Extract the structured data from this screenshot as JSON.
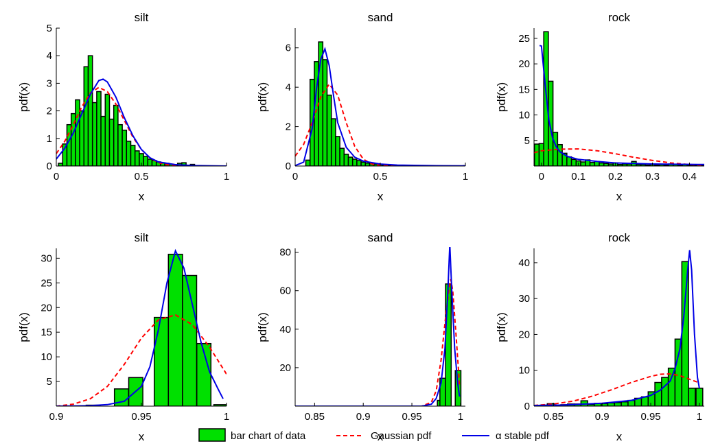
{
  "legend": {
    "items": [
      {
        "key": "bars",
        "label": "bar chart of data",
        "color": "#00e000"
      },
      {
        "key": "gauss",
        "label": "Gaussian pdf",
        "color": "#ff0000"
      },
      {
        "key": "stable",
        "label": "α stable pdf",
        "color": "#0000e6"
      }
    ]
  },
  "chart_data": [
    {
      "type": "bar",
      "title": "silt",
      "xlabel": "x",
      "ylabel": "pdf(x)",
      "xlim": [
        0,
        1
      ],
      "ylim": [
        0,
        5
      ],
      "xticks": [
        0,
        0.5,
        1
      ],
      "xtick_labels": [
        "0",
        "0.5",
        "1"
      ],
      "yticks": [
        0,
        1,
        2,
        3,
        4,
        5
      ],
      "ytick_labels": [
        "0",
        "1",
        "2",
        "3",
        "4",
        "5"
      ],
      "bin_width": 0.025,
      "bars": [
        [
          0.025,
          0.1
        ],
        [
          0.05,
          0.8
        ],
        [
          0.075,
          1.5
        ],
        [
          0.1,
          1.9
        ],
        [
          0.125,
          2.4
        ],
        [
          0.15,
          2.0
        ],
        [
          0.175,
          3.6
        ],
        [
          0.2,
          4.0
        ],
        [
          0.225,
          2.3
        ],
        [
          0.25,
          2.7
        ],
        [
          0.275,
          1.8
        ],
        [
          0.3,
          2.6
        ],
        [
          0.325,
          1.7
        ],
        [
          0.35,
          2.2
        ],
        [
          0.375,
          1.5
        ],
        [
          0.4,
          1.3
        ],
        [
          0.425,
          0.9
        ],
        [
          0.45,
          0.75
        ],
        [
          0.475,
          0.55
        ],
        [
          0.5,
          0.45
        ],
        [
          0.525,
          0.35
        ],
        [
          0.55,
          0.25
        ],
        [
          0.575,
          0.2
        ],
        [
          0.6,
          0.15
        ],
        [
          0.625,
          0.12
        ],
        [
          0.65,
          0.1
        ],
        [
          0.675,
          0.07
        ],
        [
          0.7,
          0.05
        ],
        [
          0.725,
          0.1
        ],
        [
          0.75,
          0.12
        ],
        [
          0.8,
          0.06
        ]
      ],
      "gaussian": [
        [
          0,
          0.45
        ],
        [
          0.05,
          0.9
        ],
        [
          0.1,
          1.5
        ],
        [
          0.15,
          2.15
        ],
        [
          0.2,
          2.65
        ],
        [
          0.25,
          2.85
        ],
        [
          0.3,
          2.7
        ],
        [
          0.35,
          2.25
        ],
        [
          0.4,
          1.65
        ],
        [
          0.45,
          1.05
        ],
        [
          0.5,
          0.6
        ],
        [
          0.55,
          0.3
        ],
        [
          0.6,
          0.12
        ],
        [
          0.65,
          0.05
        ],
        [
          0.7,
          0.02
        ],
        [
          0.8,
          0.0
        ],
        [
          1,
          0.0
        ]
      ],
      "stable": [
        [
          0,
          0.25
        ],
        [
          0.05,
          0.65
        ],
        [
          0.1,
          1.2
        ],
        [
          0.15,
          1.9
        ],
        [
          0.2,
          2.6
        ],
        [
          0.25,
          3.1
        ],
        [
          0.275,
          3.15
        ],
        [
          0.3,
          3.05
        ],
        [
          0.35,
          2.5
        ],
        [
          0.4,
          1.75
        ],
        [
          0.45,
          1.1
        ],
        [
          0.5,
          0.6
        ],
        [
          0.55,
          0.3
        ],
        [
          0.6,
          0.15
        ],
        [
          0.7,
          0.05
        ],
        [
          0.8,
          0.02
        ],
        [
          1,
          0.0
        ]
      ]
    },
    {
      "type": "bar",
      "title": "sand",
      "xlabel": "x",
      "ylabel": "pdf(x)",
      "xlim": [
        0,
        1
      ],
      "ylim": [
        0,
        7
      ],
      "xticks": [
        0,
        0.5,
        1
      ],
      "xtick_labels": [
        "0",
        "0.5",
        "1"
      ],
      "yticks": [
        0,
        2,
        4,
        6
      ],
      "ytick_labels": [
        "0",
        "2",
        "4",
        "6"
      ],
      "bin_width": 0.025,
      "bars": [
        [
          0.075,
          0.3
        ],
        [
          0.1,
          4.4
        ],
        [
          0.125,
          5.3
        ],
        [
          0.15,
          6.3
        ],
        [
          0.175,
          5.4
        ],
        [
          0.2,
          3.6
        ],
        [
          0.225,
          2.4
        ],
        [
          0.25,
          1.5
        ],
        [
          0.275,
          0.9
        ],
        [
          0.3,
          0.6
        ],
        [
          0.325,
          0.45
        ],
        [
          0.35,
          0.35
        ],
        [
          0.375,
          0.28
        ],
        [
          0.4,
          0.2
        ],
        [
          0.425,
          0.15
        ],
        [
          0.45,
          0.12
        ],
        [
          0.475,
          0.1
        ],
        [
          0.5,
          0.07
        ],
        [
          0.525,
          0.06
        ],
        [
          0.55,
          0.05
        ],
        [
          0.6,
          0.04
        ],
        [
          0.65,
          0.03
        ],
        [
          0.7,
          0.02
        ],
        [
          0.75,
          0.02
        ],
        [
          0.8,
          0.02
        ],
        [
          0.85,
          0.01
        ],
        [
          0.9,
          0.01
        ],
        [
          0.95,
          0.01
        ],
        [
          1.0,
          0.02
        ]
      ],
      "gaussian": [
        [
          0,
          0.5
        ],
        [
          0.05,
          1.1
        ],
        [
          0.1,
          2.2
        ],
        [
          0.15,
          3.5
        ],
        [
          0.2,
          4.15
        ],
        [
          0.25,
          3.6
        ],
        [
          0.3,
          2.2
        ],
        [
          0.35,
          1.0
        ],
        [
          0.4,
          0.35
        ],
        [
          0.45,
          0.1
        ],
        [
          0.5,
          0.03
        ],
        [
          0.6,
          0.0
        ],
        [
          1,
          0.0
        ]
      ],
      "stable": [
        [
          0,
          0.02
        ],
        [
          0.05,
          0.2
        ],
        [
          0.1,
          1.9
        ],
        [
          0.125,
          3.9
        ],
        [
          0.15,
          5.4
        ],
        [
          0.175,
          5.95
        ],
        [
          0.2,
          5.1
        ],
        [
          0.225,
          3.6
        ],
        [
          0.25,
          2.2
        ],
        [
          0.3,
          0.95
        ],
        [
          0.35,
          0.45
        ],
        [
          0.4,
          0.25
        ],
        [
          0.5,
          0.1
        ],
        [
          0.6,
          0.05
        ],
        [
          0.8,
          0.02
        ],
        [
          1,
          0.01
        ]
      ]
    },
    {
      "type": "bar",
      "title": "rock",
      "xlabel": "x",
      "ylabel": "pdf(x)",
      "xlim": [
        -0.02,
        0.44
      ],
      "ylim": [
        0,
        27
      ],
      "xticks": [
        0,
        0.1,
        0.2,
        0.3,
        0.4
      ],
      "xtick_labels": [
        "0",
        "0.1",
        "0.2",
        "0.3",
        "0.4"
      ],
      "yticks": [
        5,
        10,
        15,
        20,
        25
      ],
      "ytick_labels": [
        "5",
        "10",
        "15",
        "20",
        "25"
      ],
      "bin_width": 0.0125,
      "bars": [
        [
          -0.0125,
          4.3
        ],
        [
          0.0,
          4.4
        ],
        [
          0.0125,
          26.3
        ],
        [
          0.025,
          16.6
        ],
        [
          0.0375,
          6.6
        ],
        [
          0.05,
          4.2
        ],
        [
          0.0625,
          2.5
        ],
        [
          0.075,
          1.8
        ],
        [
          0.0875,
          1.3
        ],
        [
          0.1,
          1.0
        ],
        [
          0.1125,
          0.8
        ],
        [
          0.125,
          1.2
        ],
        [
          0.1375,
          0.7
        ],
        [
          0.15,
          0.9
        ],
        [
          0.1625,
          0.6
        ],
        [
          0.175,
          0.5
        ],
        [
          0.1875,
          0.4
        ],
        [
          0.2,
          0.6
        ],
        [
          0.2125,
          0.3
        ],
        [
          0.225,
          0.4
        ],
        [
          0.2375,
          0.4
        ],
        [
          0.25,
          0.9
        ],
        [
          0.2625,
          0.3
        ],
        [
          0.275,
          0.3
        ],
        [
          0.2875,
          0.2
        ],
        [
          0.3,
          0.3
        ],
        [
          0.3125,
          0.2
        ],
        [
          0.325,
          0.3
        ],
        [
          0.3375,
          0.2
        ],
        [
          0.35,
          0.4
        ],
        [
          0.3625,
          0.3
        ],
        [
          0.375,
          0.2
        ],
        [
          0.3875,
          0.3
        ],
        [
          0.4,
          0.2
        ],
        [
          0.4125,
          0.2
        ],
        [
          0.425,
          0.3
        ],
        [
          0.4375,
          0.2
        ]
      ],
      "gaussian": [
        [
          -0.02,
          2.6
        ],
        [
          0.0,
          3.0
        ],
        [
          0.05,
          3.3
        ],
        [
          0.1,
          3.35
        ],
        [
          0.15,
          3.0
        ],
        [
          0.2,
          2.4
        ],
        [
          0.25,
          1.7
        ],
        [
          0.3,
          1.1
        ],
        [
          0.35,
          0.6
        ],
        [
          0.4,
          0.3
        ],
        [
          0.44,
          0.15
        ]
      ],
      "stable": [
        [
          -0.005,
          23.6
        ],
        [
          0.0,
          23.5
        ],
        [
          0.01,
          16.0
        ],
        [
          0.02,
          9.0
        ],
        [
          0.03,
          5.5
        ],
        [
          0.04,
          3.8
        ],
        [
          0.05,
          2.8
        ],
        [
          0.07,
          1.9
        ],
        [
          0.1,
          1.3
        ],
        [
          0.15,
          0.9
        ],
        [
          0.2,
          0.6
        ],
        [
          0.3,
          0.4
        ],
        [
          0.44,
          0.3
        ]
      ]
    },
    {
      "type": "bar",
      "title": "silt",
      "xlabel": "x",
      "ylabel": "pdf(x)",
      "xlim": [
        0.9,
        1.0
      ],
      "ylim": [
        0,
        32
      ],
      "xticks": [
        0.9,
        0.95,
        1
      ],
      "xtick_labels": [
        "0.9",
        "0.95",
        "1"
      ],
      "yticks": [
        5,
        10,
        15,
        20,
        25,
        30
      ],
      "ytick_labels": [
        "5",
        "10",
        "15",
        "20",
        "25",
        "30"
      ],
      "bin_width": 0.0083,
      "bars": [
        [
          0.9217,
          0.2
        ],
        [
          0.9383,
          3.5
        ],
        [
          0.9467,
          5.8
        ],
        [
          0.9617,
          18.0
        ],
        [
          0.97,
          30.8
        ],
        [
          0.9783,
          26.5
        ],
        [
          0.9867,
          12.7
        ],
        [
          0.9967,
          0.3
        ]
      ],
      "gaussian": [
        [
          0.9,
          0.0
        ],
        [
          0.91,
          0.4
        ],
        [
          0.92,
          1.5
        ],
        [
          0.93,
          4.0
        ],
        [
          0.94,
          8.5
        ],
        [
          0.95,
          13.8
        ],
        [
          0.96,
          17.5
        ],
        [
          0.97,
          18.5
        ],
        [
          0.98,
          16.5
        ],
        [
          0.99,
          12.0
        ],
        [
          1.0,
          6.5
        ]
      ],
      "stable": [
        [
          0.9,
          0.0
        ],
        [
          0.92,
          0.1
        ],
        [
          0.93,
          0.3
        ],
        [
          0.94,
          1.0
        ],
        [
          0.95,
          4.0
        ],
        [
          0.955,
          8.0
        ],
        [
          0.96,
          15.5
        ],
        [
          0.965,
          25.0
        ],
        [
          0.97,
          31.5
        ],
        [
          0.975,
          28.0
        ],
        [
          0.98,
          20.5
        ],
        [
          0.985,
          13.0
        ],
        [
          0.99,
          7.0
        ],
        [
          0.995,
          3.5
        ],
        [
          0.998,
          1.5
        ]
      ]
    },
    {
      "type": "bar",
      "title": "sand",
      "xlabel": "x",
      "ylabel": "pdf(x)",
      "xlim": [
        0.83,
        1.005
      ],
      "ylim": [
        0,
        82
      ],
      "xticks": [
        0.85,
        0.9,
        0.95,
        1
      ],
      "xtick_labels": [
        "0.85",
        "0.9",
        "0.95",
        "1"
      ],
      "yticks": [
        20,
        40,
        60,
        80
      ],
      "ytick_labels": [
        "20",
        "40",
        "60",
        "80"
      ],
      "bin_width": 0.0058,
      "bars": [
        [
          0.9791,
          3.0
        ],
        [
          0.9817,
          14.5
        ],
        [
          0.9875,
          63.5
        ],
        [
          0.9975,
          18.5
        ]
      ],
      "gaussian": [
        [
          0.83,
          0.0
        ],
        [
          0.96,
          0.0
        ],
        [
          0.97,
          2.0
        ],
        [
          0.975,
          8.0
        ],
        [
          0.98,
          24.0
        ],
        [
          0.985,
          48.0
        ],
        [
          0.988,
          60.0
        ],
        [
          0.99,
          66.0
        ],
        [
          0.992,
          60.0
        ],
        [
          0.995,
          40.0
        ],
        [
          0.998,
          18.0
        ],
        [
          0.999,
          10.0
        ]
      ],
      "stable": [
        [
          0.83,
          0.0
        ],
        [
          0.96,
          0.0
        ],
        [
          0.97,
          1.0
        ],
        [
          0.975,
          4.0
        ],
        [
          0.98,
          12.0
        ],
        [
          0.984,
          30.0
        ],
        [
          0.987,
          60.0
        ],
        [
          0.989,
          84.0
        ],
        [
          0.991,
          60.0
        ],
        [
          0.994,
          30.0
        ],
        [
          0.997,
          12.0
        ],
        [
          0.999,
          5.0
        ]
      ]
    },
    {
      "type": "bar",
      "title": "rock",
      "xlabel": "x",
      "ylabel": "pdf(x)",
      "xlim": [
        0.83,
        1.005
      ],
      "ylim": [
        0,
        44
      ],
      "xticks": [
        0.85,
        0.9,
        0.95,
        1
      ],
      "xtick_labels": [
        "0.85",
        "0.9",
        "0.95",
        "1"
      ],
      "yticks": [
        0,
        10,
        20,
        30,
        40
      ],
      "ytick_labels": [
        "0",
        "10",
        "20",
        "30",
        "40"
      ],
      "bin_width": 0.0069,
      "bars": [
        [
          0.8333,
          0.2
        ],
        [
          0.8402,
          0.3
        ],
        [
          0.8471,
          0.7
        ],
        [
          0.854,
          0.3
        ],
        [
          0.861,
          0.4
        ],
        [
          0.8679,
          0.6
        ],
        [
          0.8748,
          0.6
        ],
        [
          0.8817,
          1.5
        ],
        [
          0.8886,
          0.5
        ],
        [
          0.8955,
          0.8
        ],
        [
          0.9024,
          0.7
        ],
        [
          0.9093,
          0.9
        ],
        [
          0.9162,
          1.0
        ],
        [
          0.9232,
          1.2
        ],
        [
          0.9301,
          1.6
        ],
        [
          0.937,
          2.2
        ],
        [
          0.9439,
          2.6
        ],
        [
          0.9508,
          4.0
        ],
        [
          0.9577,
          6.6
        ],
        [
          0.9646,
          8.0
        ],
        [
          0.9715,
          10.6
        ],
        [
          0.9784,
          18.7
        ],
        [
          0.9854,
          40.3
        ],
        [
          0.9923,
          5.0
        ],
        [
          1.0,
          5.0
        ]
      ],
      "gaussian": [
        [
          0.83,
          0.2
        ],
        [
          0.85,
          0.6
        ],
        [
          0.87,
          1.4
        ],
        [
          0.89,
          2.8
        ],
        [
          0.91,
          4.6
        ],
        [
          0.93,
          6.6
        ],
        [
          0.95,
          8.3
        ],
        [
          0.96,
          8.9
        ],
        [
          0.97,
          9.0
        ],
        [
          0.98,
          8.5
        ],
        [
          0.99,
          7.5
        ],
        [
          1.0,
          6.5
        ]
      ],
      "stable": [
        [
          0.83,
          0.2
        ],
        [
          0.86,
          0.3
        ],
        [
          0.9,
          0.8
        ],
        [
          0.93,
          1.6
        ],
        [
          0.95,
          3.0
        ],
        [
          0.96,
          4.5
        ],
        [
          0.97,
          7.0
        ],
        [
          0.975,
          10.5
        ],
        [
          0.98,
          16.0
        ],
        [
          0.984,
          25.0
        ],
        [
          0.988,
          38.0
        ],
        [
          0.99,
          43.5
        ],
        [
          0.992,
          38.0
        ],
        [
          0.995,
          20.0
        ],
        [
          0.998,
          8.0
        ],
        [
          1.0,
          5.0
        ]
      ]
    }
  ]
}
